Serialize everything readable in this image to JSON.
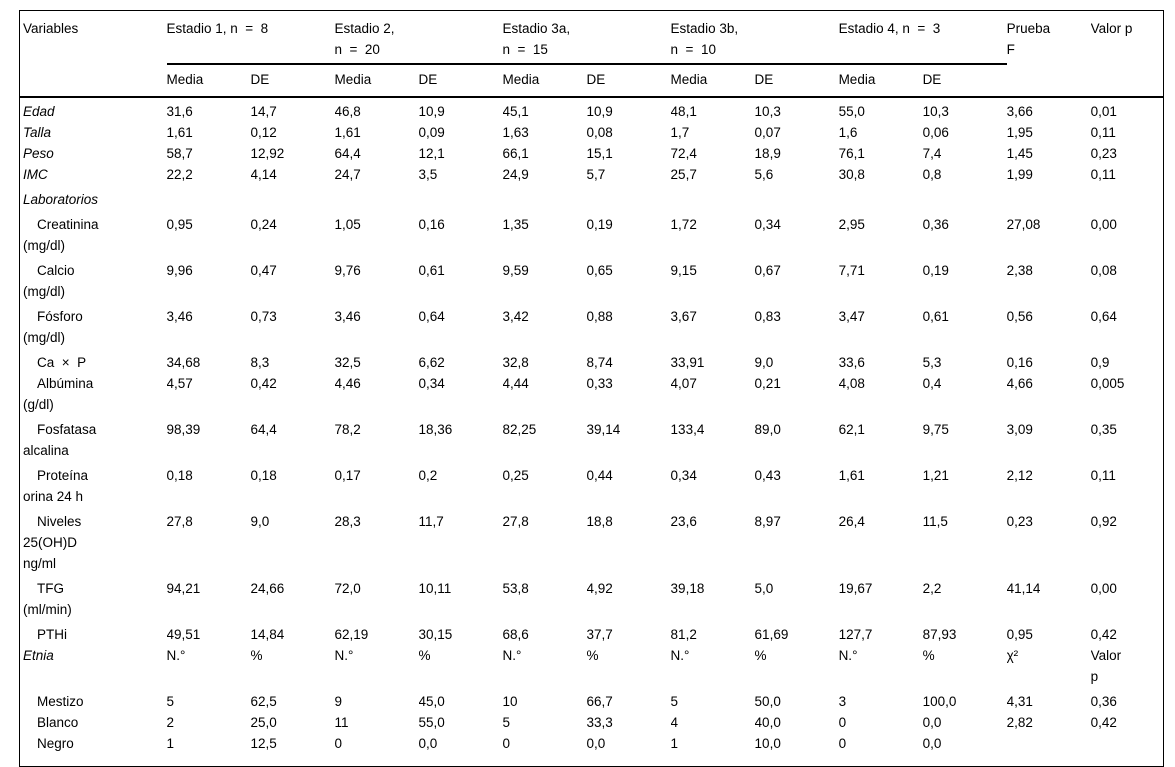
{
  "colors": {
    "text": "#000000",
    "background": "#ffffff",
    "rules": "#000000"
  },
  "header": {
    "variables_label": "Variables",
    "groups": [
      {
        "label": "Estadio 1, n  =  8"
      },
      {
        "label": "Estadio 2,\nn  =  20"
      },
      {
        "label": "Estadio 3a,\nn  =  15"
      },
      {
        "label": "Estadio 3b,\nn  =  10"
      },
      {
        "label": "Estadio 4, n  =  3"
      }
    ],
    "subheaders": [
      "Media",
      "DE"
    ],
    "prueba_f": "Prueba\nF",
    "valor_p": "Valor p"
  },
  "rows": [
    {
      "label": "Edad",
      "italic": true,
      "indent": false,
      "pad": false,
      "values": [
        "31,6",
        "14,7",
        "46,8",
        "10,9",
        "45,1",
        "10,9",
        "48,1",
        "10,3",
        "55,0",
        "10,3",
        "3,66",
        "0,01"
      ]
    },
    {
      "label": "Talla",
      "italic": true,
      "indent": false,
      "pad": false,
      "values": [
        "1,61",
        "0,12",
        "1,61",
        "0,09",
        "1,63",
        "0,08",
        "1,7",
        "0,07",
        "1,6",
        "0,06",
        "1,95",
        "0,11"
      ]
    },
    {
      "label": "Peso",
      "italic": true,
      "indent": false,
      "pad": false,
      "values": [
        "58,7",
        "12,92",
        "64,4",
        "12,1",
        "66,1",
        "15,1",
        "72,4",
        "18,9",
        "76,1",
        "7,4",
        "1,45",
        "0,23"
      ]
    },
    {
      "label": "IMC",
      "italic": true,
      "indent": false,
      "pad": true,
      "values": [
        "22,2",
        "4,14",
        "24,7",
        "3,5",
        "24,9",
        "5,7",
        "25,7",
        "5,6",
        "30,8",
        "0,8",
        "1,99",
        "0,11"
      ]
    },
    {
      "label": "Laboratorios",
      "italic": true,
      "indent": false,
      "pad": true,
      "values": []
    },
    {
      "label": "Creatinina\n(mg/dl)",
      "italic": false,
      "indent": true,
      "pad": true,
      "values": [
        "0,95",
        "0,24",
        "1,05",
        "0,16",
        "1,35",
        "0,19",
        "1,72",
        "0,34",
        "2,95",
        "0,36",
        "27,08",
        "0,00"
      ]
    },
    {
      "label": "Calcio\n(mg/dl)",
      "italic": false,
      "indent": true,
      "pad": true,
      "values": [
        "9,96",
        "0,47",
        "9,76",
        "0,61",
        "9,59",
        "0,65",
        "9,15",
        "0,67",
        "7,71",
        "0,19",
        "2,38",
        "0,08"
      ]
    },
    {
      "label": "Fósforo\n(mg/dl)",
      "italic": false,
      "indent": true,
      "pad": true,
      "values": [
        "3,46",
        "0,73",
        "3,46",
        "0,64",
        "3,42",
        "0,88",
        "3,67",
        "0,83",
        "3,47",
        "0,61",
        "0,56",
        "0,64"
      ]
    },
    {
      "label": "Ca  ×  P",
      "italic": false,
      "indent": true,
      "pad": false,
      "values": [
        "34,68",
        "8,3",
        "32,5",
        "6,62",
        "32,8",
        "8,74",
        "33,91",
        "9,0",
        "33,6",
        "5,3",
        "0,16",
        "0,9"
      ]
    },
    {
      "label": "Albúmina\n(g/dl)",
      "italic": false,
      "indent": true,
      "pad": true,
      "values": [
        "4,57",
        "0,42",
        "4,46",
        "0,34",
        "4,44",
        "0,33",
        "4,07",
        "0,21",
        "4,08",
        "0,4",
        "4,66",
        "0,005"
      ]
    },
    {
      "label": "Fosfatasa\nalcalina",
      "italic": false,
      "indent": true,
      "pad": true,
      "values": [
        "98,39",
        "64,4",
        "78,2",
        "18,36",
        "82,25",
        "39,14",
        "133,4",
        "89,0",
        "62,1",
        "9,75",
        "3,09",
        "0,35"
      ]
    },
    {
      "label": "Proteína\norina 24 h",
      "italic": false,
      "indent": true,
      "pad": true,
      "values": [
        "0,18",
        "0,18",
        "0,17",
        "0,2",
        "0,25",
        "0,44",
        "0,34",
        "0,43",
        "1,61",
        "1,21",
        "2,12",
        "0,11"
      ]
    },
    {
      "label": "Niveles\n25(OH)D\nng/ml",
      "italic": false,
      "indent": true,
      "pad": true,
      "values": [
        "27,8",
        "9,0",
        "28,3",
        "11,7",
        "27,8",
        "18,8",
        "23,6",
        "8,97",
        "26,4",
        "11,5",
        "0,23",
        "0,92"
      ]
    },
    {
      "label": "TFG\n(ml/min)",
      "italic": false,
      "indent": true,
      "pad": true,
      "values": [
        "94,21",
        "24,66",
        "72,0",
        "10,11",
        "53,8",
        "4,92",
        "39,18",
        "5,0",
        "19,67",
        "2,2",
        "41,14",
        "0,00"
      ]
    },
    {
      "label": "PTHi",
      "italic": false,
      "indent": true,
      "pad": false,
      "values": [
        "49,51",
        "14,84",
        "62,19",
        "30,15",
        "68,6",
        "37,7",
        "81,2",
        "61,69",
        "127,7",
        "87,93",
        "0,95",
        "0,42"
      ]
    },
    {
      "label": "Etnia",
      "italic": true,
      "indent": false,
      "pad": true,
      "values": [
        "N.°",
        "%",
        "N.°",
        "%",
        "N.°",
        "%",
        "N.°",
        "%",
        "N.°",
        "%",
        "χ²",
        "Valor\np"
      ]
    },
    {
      "label": "Mestizo",
      "italic": false,
      "indent": true,
      "pad": false,
      "values": [
        "5",
        "62,5",
        "9",
        "45,0",
        "10",
        "66,7",
        "5",
        "50,0",
        "3",
        "100,0",
        "4,31",
        "0,36"
      ]
    },
    {
      "label": "Blanco",
      "italic": false,
      "indent": true,
      "pad": false,
      "values": [
        "2",
        "25,0",
        "11",
        "55,0",
        "5",
        "33,3",
        "4",
        "40,0",
        "0",
        "0,0",
        "2,82",
        "0,42"
      ]
    },
    {
      "label": "Negro",
      "italic": false,
      "indent": true,
      "pad": false,
      "values": [
        "1",
        "12,5",
        "0",
        "0,0",
        "0",
        "0,0",
        "1",
        "10,0",
        "0",
        "0,0",
        "",
        ""
      ]
    }
  ]
}
